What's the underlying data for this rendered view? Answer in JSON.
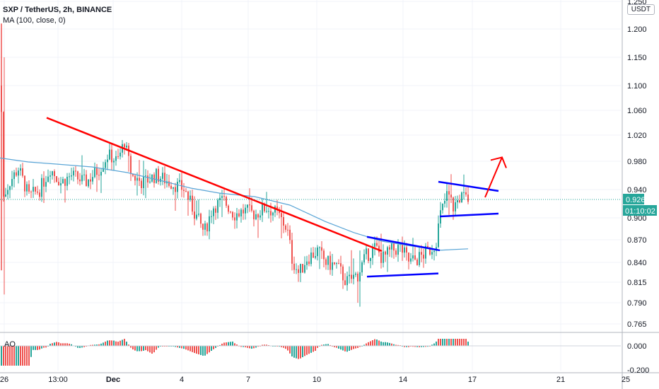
{
  "header": {
    "symbol_line": "SXP / TetherUS, 2h, BINANCE",
    "ma_line": "MA (100, close, 0)",
    "currency": "USDT",
    "ao_label": "AO"
  },
  "price_axis": {
    "labels": [
      "1.250",
      "1.200",
      "1.150",
      "1.100",
      "1.060",
      "1.020",
      "0.980",
      "0.940",
      "0.900",
      "0.870",
      "0.840",
      "0.815",
      "0.790",
      "0.765"
    ],
    "last_price": "0.926",
    "countdown": "01:10:02",
    "ao_labels": [
      "0.000",
      "-0.200"
    ]
  },
  "time_axis": {
    "labels": [
      "26",
      "13:00",
      "Dec",
      "4",
      "7",
      "10",
      "14",
      "17",
      "21",
      "25"
    ]
  },
  "colors": {
    "up": "#26a69a",
    "down": "#ef5350",
    "ma": "#5aa5d6",
    "trend_red": "#ff0000",
    "channel_blue": "#0000ff",
    "last_price_tag": "#26a69a",
    "countdown_tag": "#26a69a"
  },
  "chart_data": {
    "type": "candlestick",
    "symbol": "SXP / TetherUS",
    "interval": "2h",
    "exchange": "BINANCE",
    "price_ticks": [
      1.25,
      1.2,
      1.15,
      1.1,
      1.06,
      1.02,
      0.98,
      0.94,
      0.9,
      0.87,
      0.84,
      0.815,
      0.79,
      0.765
    ],
    "last_price": 0.926,
    "ma_period": 100,
    "close_path": [
      {
        "x": 0,
        "c": 1.1
      },
      {
        "x": 4,
        "c": 0.93
      },
      {
        "x": 12,
        "c": 0.95
      },
      {
        "x": 25,
        "c": 0.97
      },
      {
        "x": 40,
        "c": 0.93
      },
      {
        "x": 55,
        "c": 0.94
      },
      {
        "x": 70,
        "c": 0.97
      },
      {
        "x": 85,
        "c": 0.95
      },
      {
        "x": 100,
        "c": 0.96
      },
      {
        "x": 120,
        "c": 0.95
      },
      {
        "x": 140,
        "c": 0.97
      },
      {
        "x": 152,
        "c": 0.99
      },
      {
        "x": 165,
        "c": 0.98
      },
      {
        "x": 175,
        "c": 1.01
      },
      {
        "x": 185,
        "c": 0.96
      },
      {
        "x": 200,
        "c": 0.95
      },
      {
        "x": 220,
        "c": 0.96
      },
      {
        "x": 240,
        "c": 0.95
      },
      {
        "x": 260,
        "c": 0.94
      },
      {
        "x": 275,
        "c": 0.905
      },
      {
        "x": 288,
        "c": 0.88
      },
      {
        "x": 300,
        "c": 0.915
      },
      {
        "x": 315,
        "c": 0.925
      },
      {
        "x": 330,
        "c": 0.905
      },
      {
        "x": 345,
        "c": 0.91
      },
      {
        "x": 360,
        "c": 0.905
      },
      {
        "x": 375,
        "c": 0.915
      },
      {
        "x": 392,
        "c": 0.905
      },
      {
        "x": 405,
        "c": 0.885
      },
      {
        "x": 412,
        "c": 0.845
      },
      {
        "x": 422,
        "c": 0.825
      },
      {
        "x": 432,
        "c": 0.845
      },
      {
        "x": 448,
        "c": 0.855
      },
      {
        "x": 460,
        "c": 0.84
      },
      {
        "x": 475,
        "c": 0.835
      },
      {
        "x": 490,
        "c": 0.815
      },
      {
        "x": 505,
        "c": 0.825
      },
      {
        "x": 518,
        "c": 0.85
      },
      {
        "x": 530,
        "c": 0.86
      },
      {
        "x": 540,
        "c": 0.845
      },
      {
        "x": 552,
        "c": 0.855
      },
      {
        "x": 565,
        "c": 0.86
      },
      {
        "x": 578,
        "c": 0.84
      },
      {
        "x": 590,
        "c": 0.845
      },
      {
        "x": 605,
        "c": 0.855
      },
      {
        "x": 615,
        "c": 0.865
      },
      {
        "x": 622,
        "c": 0.905
      },
      {
        "x": 632,
        "c": 0.935
      },
      {
        "x": 640,
        "c": 0.915
      },
      {
        "x": 650,
        "c": 0.93
      },
      {
        "x": 662,
        "c": 0.926
      }
    ],
    "ma_line": [
      {
        "x": 0,
        "v": 0.985
      },
      {
        "x": 40,
        "v": 0.979
      },
      {
        "x": 80,
        "v": 0.976
      },
      {
        "x": 130,
        "v": 0.972
      },
      {
        "x": 180,
        "v": 0.964
      },
      {
        "x": 230,
        "v": 0.952
      },
      {
        "x": 270,
        "v": 0.942
      },
      {
        "x": 310,
        "v": 0.935
      },
      {
        "x": 360,
        "v": 0.93
      },
      {
        "x": 410,
        "v": 0.918
      },
      {
        "x": 460,
        "v": 0.895
      },
      {
        "x": 500,
        "v": 0.88
      },
      {
        "x": 540,
        "v": 0.868
      },
      {
        "x": 580,
        "v": 0.862
      },
      {
        "x": 620,
        "v": 0.856
      },
      {
        "x": 662,
        "v": 0.858
      }
    ],
    "drawings": {
      "red_trendline": [
        [
          66,
          1.048
        ],
        [
          540,
          0.855
        ]
      ],
      "blue_upper_descending": [
        [
          519,
          0.874
        ],
        [
          622,
          0.856
        ]
      ],
      "blue_lower_support": [
        [
          519,
          0.822
        ],
        [
          620,
          0.826
        ]
      ],
      "blue_flag_top": [
        [
          620,
          0.951
        ],
        [
          705,
          0.938
        ]
      ],
      "blue_flag_bottom": [
        [
          622,
          0.902
        ],
        [
          705,
          0.906
        ]
      ],
      "red_arrow": [
        [
          686,
          0.929
        ],
        [
          710,
          0.986
        ]
      ]
    },
    "ao": {
      "min": -0.25,
      "max": 0.05,
      "ticks": [
        0.0,
        -0.2
      ]
    }
  }
}
